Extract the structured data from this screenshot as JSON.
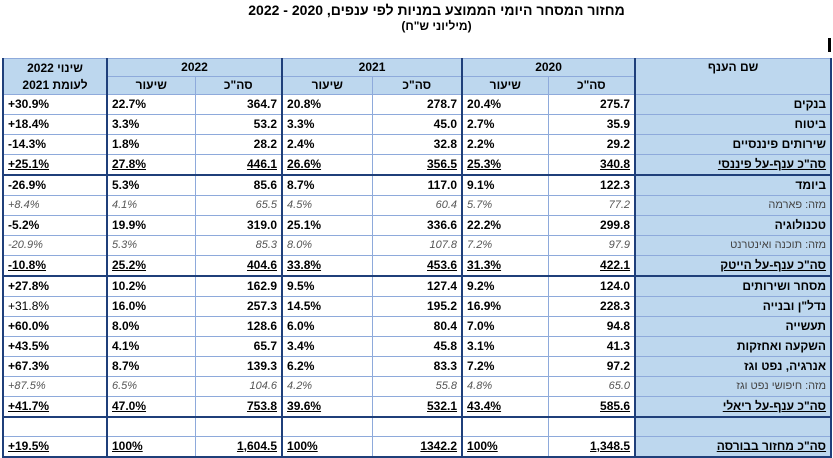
{
  "title": "מחזור המסחר היומי הממוצע במניות לפי ענפים, 2020 - 2022",
  "subtitle": "(מיליוני ש\"ח)",
  "headers": {
    "change": "שינוי 2022 לעומת 2021",
    "y2022": "2022",
    "y2021": "2021",
    "y2020": "2020",
    "sector": "שם הענף",
    "rate": "שיעור",
    "total": "סה\"כ"
  },
  "rows": [
    {
      "change": "+30.9%",
      "p22": "22.7%",
      "t22": "364.7",
      "p21": "20.8%",
      "t21": "278.7",
      "p20": "20.4%",
      "t20": "275.7",
      "name": "בנקים",
      "kind": "normal"
    },
    {
      "change": "+18.4%",
      "p22": "3.3%",
      "t22": "53.2",
      "p21": "3.3%",
      "t21": "45.0",
      "p20": "2.7%",
      "t20": "35.9",
      "name": "ביטוח",
      "kind": "normal"
    },
    {
      "change": "-14.3%",
      "p22": "1.8%",
      "t22": "28.2",
      "p21": "2.4%",
      "t21": "32.8",
      "p20": "2.2%",
      "t20": "29.2",
      "name": "שירותים פיננסיים",
      "kind": "normal"
    },
    {
      "change": "+25.1%",
      "p22": "27.8%",
      "t22": "446.1",
      "p21": "26.6%",
      "t21": "356.5",
      "p20": "25.3%",
      "t20": "340.8",
      "name": "סה\"כ ענף-על פיננסי",
      "kind": "total"
    },
    {
      "change": "-26.9%",
      "p22": "5.3%",
      "t22": "85.6",
      "p21": "8.7%",
      "t21": "117.0",
      "p20": "9.1%",
      "t20": "122.3",
      "name": "ביומד",
      "kind": "normal"
    },
    {
      "change": "+8.4%",
      "p22": "4.1%",
      "t22": "65.5",
      "p21": "4.5%",
      "t21": "60.4",
      "p20": "5.7%",
      "t20": "77.2",
      "name": "מזה: פארמה",
      "kind": "sub"
    },
    {
      "change": "-5.2%",
      "p22": "19.9%",
      "t22": "319.0",
      "p21": "25.1%",
      "t21": "336.6",
      "p20": "22.2%",
      "t20": "299.8",
      "name": "טכנולוגיה",
      "kind": "normal"
    },
    {
      "change": "-20.9%",
      "p22": "5.3%",
      "t22": "85.3",
      "p21": "8.0%",
      "t21": "107.8",
      "p20": "7.2%",
      "t20": "97.9",
      "name": "מזה: תוכנה ואינטרנט",
      "kind": "sub"
    },
    {
      "change": "-10.8%",
      "p22": "25.2%",
      "t22": "404.6",
      "p21": "33.8%",
      "t21": "453.6",
      "p20": "31.3%",
      "t20": "422.1",
      "name": "סה\"כ ענף-על הייטק",
      "kind": "total"
    },
    {
      "change": "+27.8%",
      "p22": "10.2%",
      "t22": "162.9",
      "p21": "9.5%",
      "t21": "127.4",
      "p20": "9.2%",
      "t20": "124.0",
      "name": "מסחר ושירותים",
      "kind": "normal"
    },
    {
      "change": "+31.8%",
      "p22": "16.0%",
      "t22": "257.3",
      "p21": "14.5%",
      "t21": "195.2",
      "p20": "16.9%",
      "t20": "228.3",
      "name": "נדל\"ן ובנייה",
      "kind": "normal-sub"
    },
    {
      "change": "+60.0%",
      "p22": "8.0%",
      "t22": "128.6",
      "p21": "6.0%",
      "t21": "80.4",
      "p20": "7.0%",
      "t20": "94.8",
      "name": "תעשייה",
      "kind": "normal"
    },
    {
      "change": "+43.5%",
      "p22": "4.1%",
      "t22": "65.7",
      "p21": "3.4%",
      "t21": "45.8",
      "p20": "3.1%",
      "t20": "41.3",
      "name": "השקעה ואחזקות",
      "kind": "normal"
    },
    {
      "change": "+67.3%",
      "p22": "8.7%",
      "t22": "139.3",
      "p21": "6.2%",
      "t21": "83.3",
      "p20": "7.2%",
      "t20": "97.2",
      "name": "אנרגיה, נפט וגז",
      "kind": "normal"
    },
    {
      "change": "+87.5%",
      "p22": "6.5%",
      "t22": "104.6",
      "p21": "4.2%",
      "t21": "55.8",
      "p20": "4.8%",
      "t20": "65.0",
      "name": "מזה: חיפושי נפט וגז",
      "kind": "sub"
    },
    {
      "change": "+41.7%",
      "p22": "47.0%",
      "t22": "753.8",
      "p21": "39.6%",
      "t21": "532.1",
      "p20": "43.4%",
      "t20": "585.6",
      "name": "סה\"כ ענף-על ריאלי",
      "kind": "total"
    }
  ],
  "grand_total": {
    "change": "+19.5%",
    "p22": "100%",
    "t22": "1,604.5",
    "p21": "100%",
    "t21": "1342.2",
    "p20": "100%",
    "t20": "1,348.5",
    "name": "סה\"כ מחזור בבורסה"
  }
}
